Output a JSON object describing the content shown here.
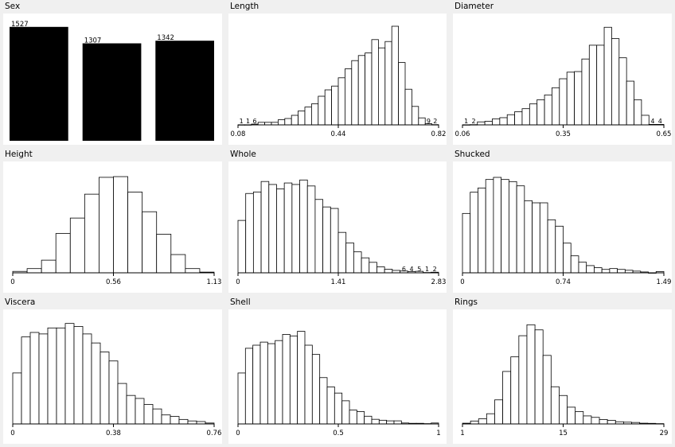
{
  "chart_data": [
    {
      "type": "bar",
      "title": "Sex",
      "kind": "category",
      "values": [
        1527,
        1307,
        1342
      ],
      "ylim": [
        0,
        1600
      ]
    },
    {
      "type": "bar",
      "title": "Length",
      "kind": "histogram",
      "xlim": [
        0.08,
        0.82
      ],
      "ticks": [
        "0.08",
        "0.44",
        "0.82"
      ],
      "values": [
        1,
        1,
        6,
        20,
        20,
        20,
        40,
        50,
        75,
        110,
        140,
        165,
        225,
        275,
        305,
        370,
        440,
        505,
        545,
        565,
        670,
        605,
        655,
        775,
        490,
        280,
        145,
        55,
        9,
        2
      ],
      "ylim": [
        0,
        800
      ],
      "end_labels": {
        "left": [
          "1",
          "1",
          "6"
        ],
        "right": [
          "9",
          "2"
        ]
      }
    },
    {
      "type": "bar",
      "title": "Diameter",
      "kind": "histogram",
      "xlim": [
        0.06,
        0.65
      ],
      "ticks": [
        "0.06",
        "0.35",
        "0.65"
      ],
      "values": [
        1,
        2,
        25,
        30,
        50,
        60,
        85,
        110,
        135,
        175,
        210,
        250,
        310,
        385,
        440,
        445,
        550,
        665,
        665,
        815,
        720,
        560,
        365,
        210,
        80,
        4,
        4
      ],
      "ylim": [
        0,
        850
      ],
      "end_labels": {
        "left": [
          "1",
          "2"
        ],
        "right": [
          "4",
          "4"
        ]
      }
    },
    {
      "type": "bar",
      "title": "Height",
      "kind": "histogram",
      "xlim": [
        0,
        1.13
      ],
      "ticks": [
        "0",
        "0.56",
        "1.13"
      ],
      "values": [
        20,
        60,
        180,
        560,
        780,
        1120,
        1360,
        1370,
        1150,
        870,
        550,
        260,
        60,
        10
      ],
      "ylim": [
        0,
        1450
      ]
    },
    {
      "type": "bar",
      "title": "Whole",
      "kind": "histogram",
      "xlim": [
        0,
        2.83
      ],
      "ticks": [
        "0",
        "1.41",
        "2.83"
      ],
      "values": [
        175,
        265,
        270,
        305,
        295,
        280,
        300,
        295,
        310,
        290,
        245,
        220,
        215,
        135,
        100,
        70,
        50,
        35,
        20,
        12,
        8,
        6,
        4,
        5,
        1,
        2
      ],
      "ylim": [
        0,
        340
      ],
      "end_labels": {
        "right": [
          "6",
          "4",
          "5",
          "1",
          "2"
        ]
      }
    },
    {
      "type": "bar",
      "title": "Shucked",
      "kind": "histogram",
      "xlim": [
        0,
        1.49
      ],
      "ticks": [
        "0",
        "0.74",
        "1.49"
      ],
      "values": [
        140,
        190,
        200,
        220,
        225,
        220,
        215,
        205,
        170,
        165,
        165,
        125,
        110,
        70,
        40,
        25,
        17,
        12,
        8,
        10,
        8,
        6,
        4,
        2,
        0,
        3
      ],
      "ylim": [
        0,
        240
      ]
    },
    {
      "type": "bar",
      "title": "Viscera",
      "kind": "histogram",
      "xlim": [
        0,
        0.76
      ],
      "ticks": [
        "0",
        "0.38",
        "0.76"
      ],
      "values": [
        170,
        290,
        305,
        300,
        320,
        320,
        335,
        325,
        300,
        270,
        240,
        210,
        135,
        95,
        85,
        65,
        50,
        30,
        25,
        15,
        10,
        8,
        3
      ],
      "ylim": [
        0,
        350
      ]
    },
    {
      "type": "bar",
      "title": "Shell",
      "kind": "histogram",
      "xlim": [
        0,
        1
      ],
      "ticks": [
        "0",
        "0.5",
        "1"
      ],
      "values": [
        165,
        245,
        255,
        265,
        260,
        270,
        290,
        285,
        300,
        255,
        225,
        150,
        120,
        100,
        75,
        45,
        40,
        25,
        15,
        12,
        10,
        10,
        3,
        2,
        2,
        1,
        3
      ],
      "ylim": [
        0,
        340
      ]
    },
    {
      "type": "bar",
      "title": "Rings",
      "kind": "histogram",
      "xlim": [
        1,
        29
      ],
      "ticks": [
        "1",
        "15",
        "29"
      ],
      "values": [
        5,
        20,
        35,
        70,
        165,
        360,
        460,
        605,
        680,
        645,
        470,
        255,
        195,
        115,
        85,
        55,
        45,
        30,
        25,
        15,
        12,
        10,
        5,
        4,
        2
      ],
      "ylim": [
        0,
        720
      ]
    }
  ]
}
